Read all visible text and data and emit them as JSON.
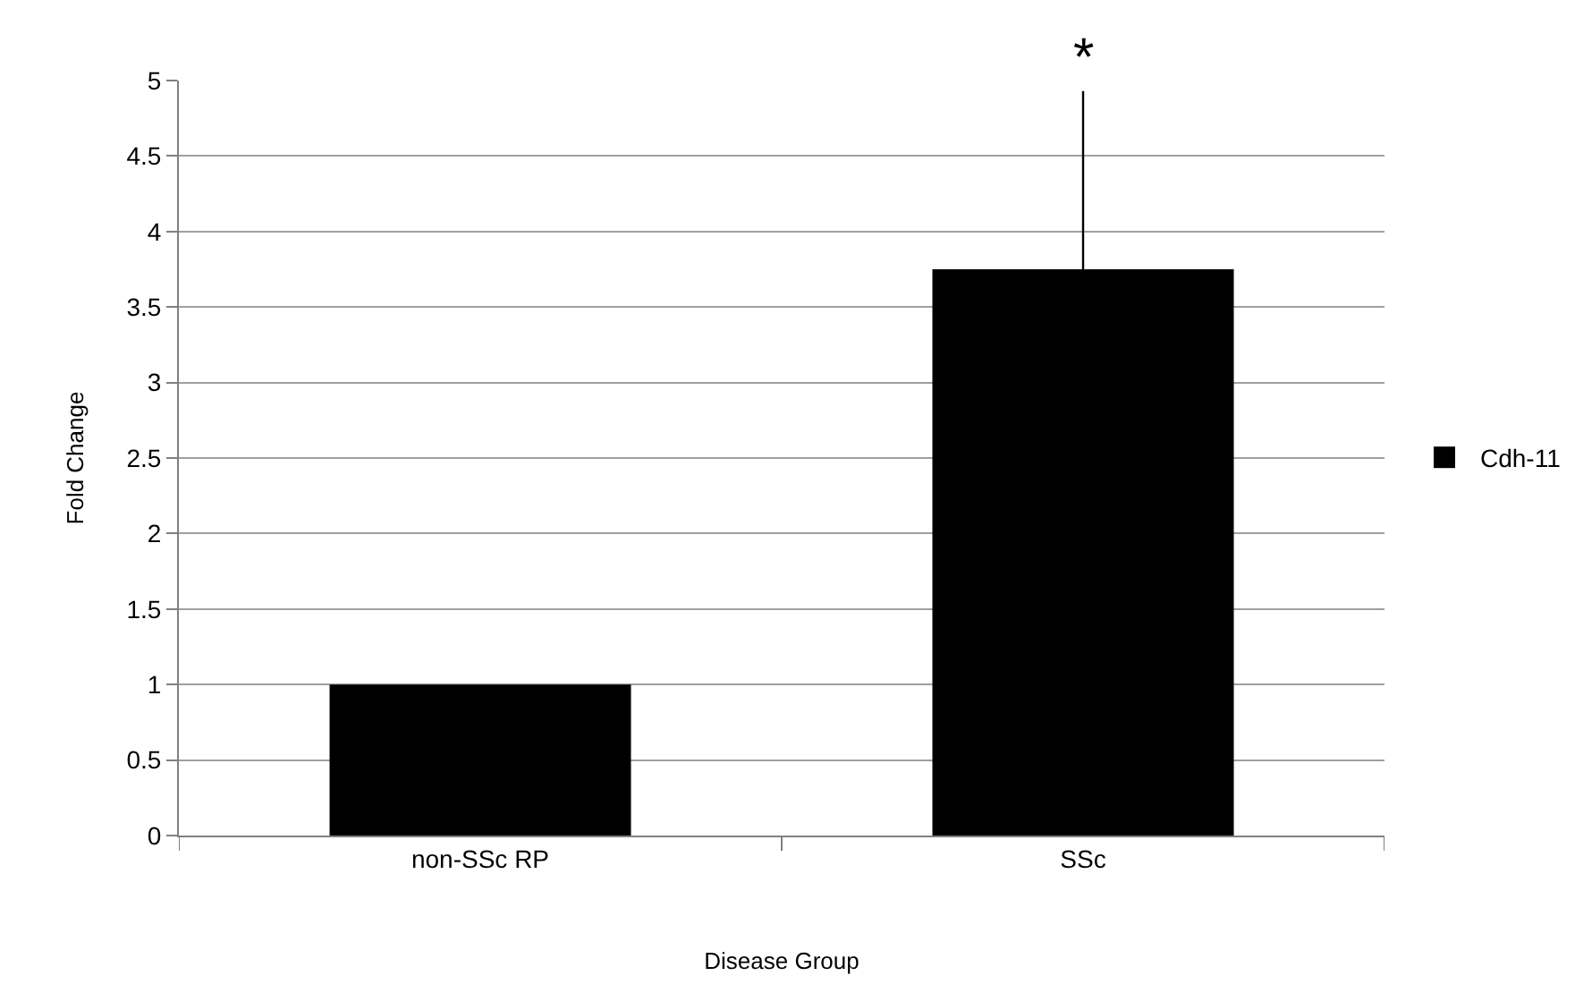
{
  "chart_data": {
    "type": "bar",
    "xlabel": "Disease Group",
    "ylabel": "Fold Change",
    "categories": [
      "non-SSc RP",
      "SSc"
    ],
    "series": [
      {
        "name": "Cdh-11",
        "color": "#000000",
        "values": [
          1.0,
          3.75
        ],
        "errors": [
          null,
          [
            3.75,
            4.93
          ]
        ]
      }
    ],
    "ylim": [
      0,
      5
    ],
    "yticks": [
      0,
      0.5,
      1,
      1.5,
      2,
      2.5,
      3,
      3.5,
      4,
      4.5,
      5
    ],
    "grid": "y",
    "legend": "right",
    "annotations": [
      {
        "text": "*",
        "x": "SSc",
        "y": 4.93
      }
    ]
  }
}
